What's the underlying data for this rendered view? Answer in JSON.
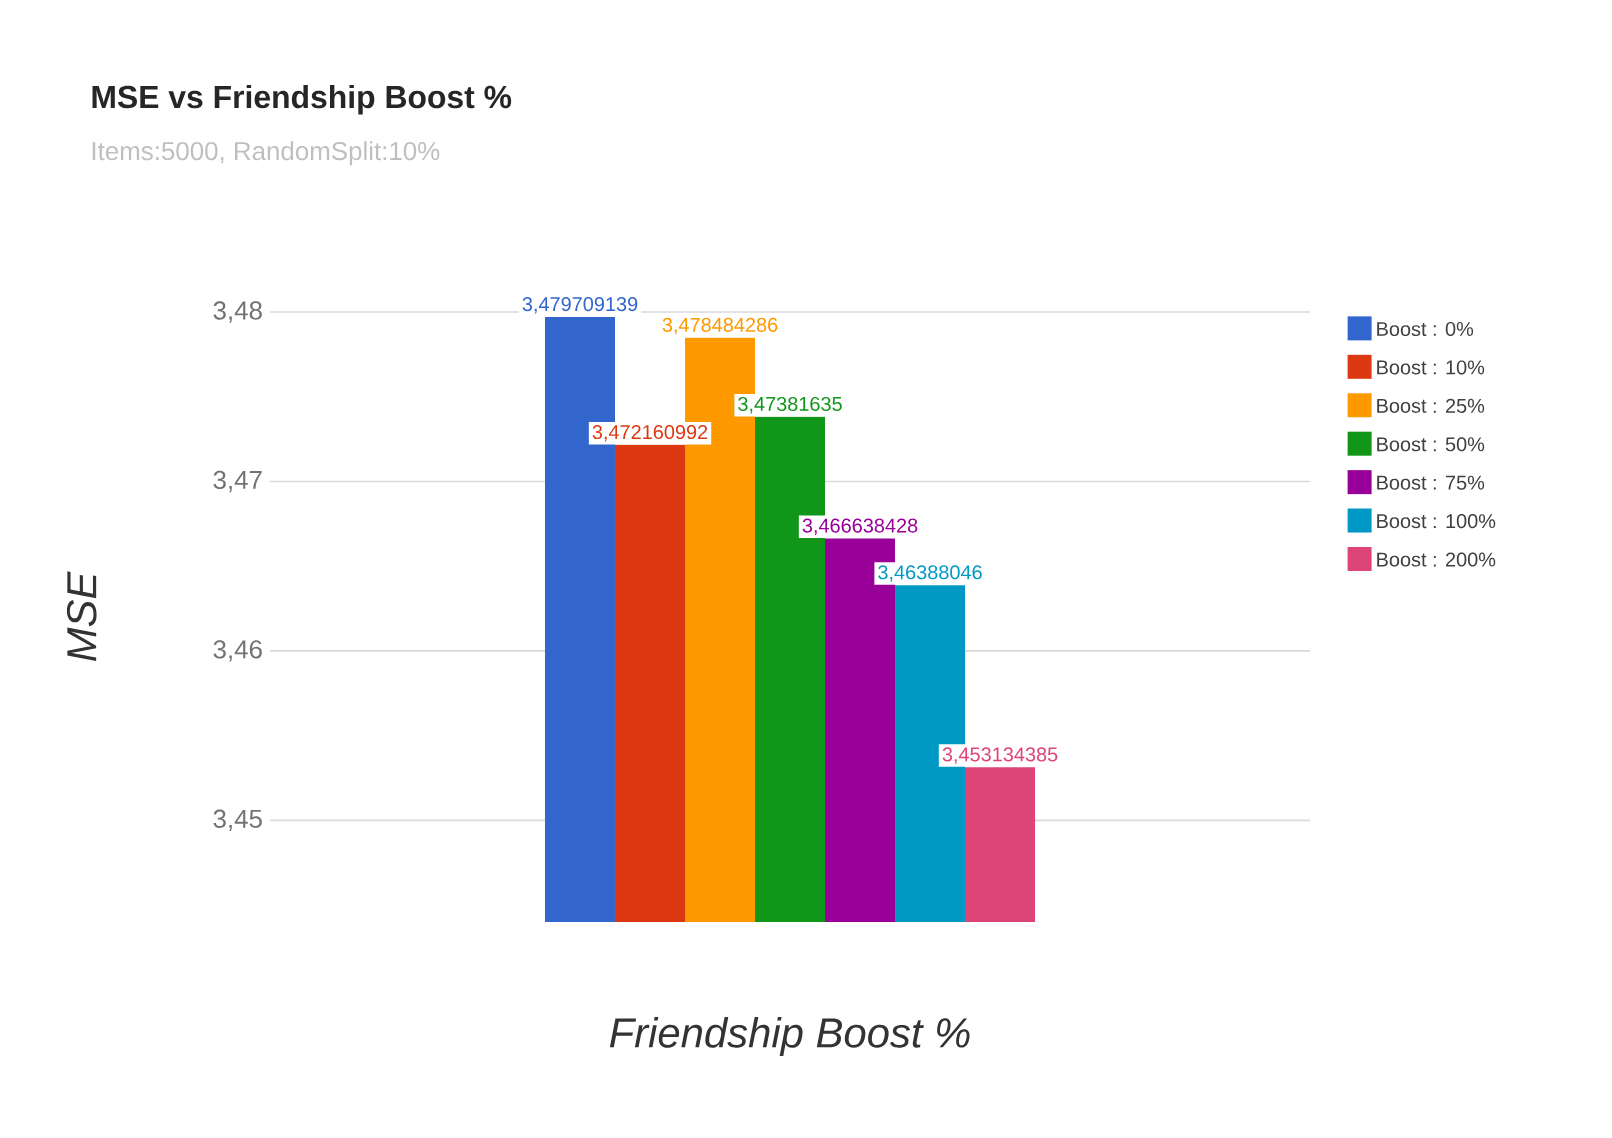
{
  "chart_data": {
    "type": "bar",
    "title": "MSE vs Friendship Boost %",
    "subtitle": "Items:5000, RandomSplit:10%",
    "xlabel": "Friendship Boost %",
    "ylabel": "MSE",
    "categories": [
      null
    ],
    "series": [
      {
        "name": "Boost : 0%",
        "color": "#3366cc",
        "values": [
          3.479709139
        ],
        "value_labels": [
          "3,479709139"
        ]
      },
      {
        "name": "Boost : 10%",
        "color": "#dc3912",
        "values": [
          3.472160992
        ],
        "value_labels": [
          "3,472160992"
        ]
      },
      {
        "name": "Boost : 25%",
        "color": "#ff9900",
        "values": [
          3.478484286
        ],
        "value_labels": [
          "3,478484286"
        ]
      },
      {
        "name": "Boost : 50%",
        "color": "#109618",
        "values": [
          3.47381635
        ],
        "value_labels": [
          "3,47381635"
        ]
      },
      {
        "name": "Boost : 75%",
        "color": "#990099",
        "values": [
          3.466638428
        ],
        "value_labels": [
          "3,466638428"
        ]
      },
      {
        "name": "Boost : 100%",
        "color": "#0099c6",
        "values": [
          3.46388046
        ],
        "value_labels": [
          "3,46388046"
        ]
      },
      {
        "name": "Boost : 200%",
        "color": "#dd4477",
        "values": [
          3.453134385
        ],
        "value_labels": [
          "3,453134385"
        ]
      }
    ],
    "ylim": [
      3.444,
      3.48
    ],
    "yticks": [
      {
        "value": 3.45,
        "label": "3,45"
      },
      {
        "value": 3.46,
        "label": "3,46"
      },
      {
        "value": 3.47,
        "label": "3,47"
      },
      {
        "value": 3.48,
        "label": "3,48"
      }
    ],
    "grid": "y",
    "legend": "right",
    "tick_labels": "y"
  }
}
